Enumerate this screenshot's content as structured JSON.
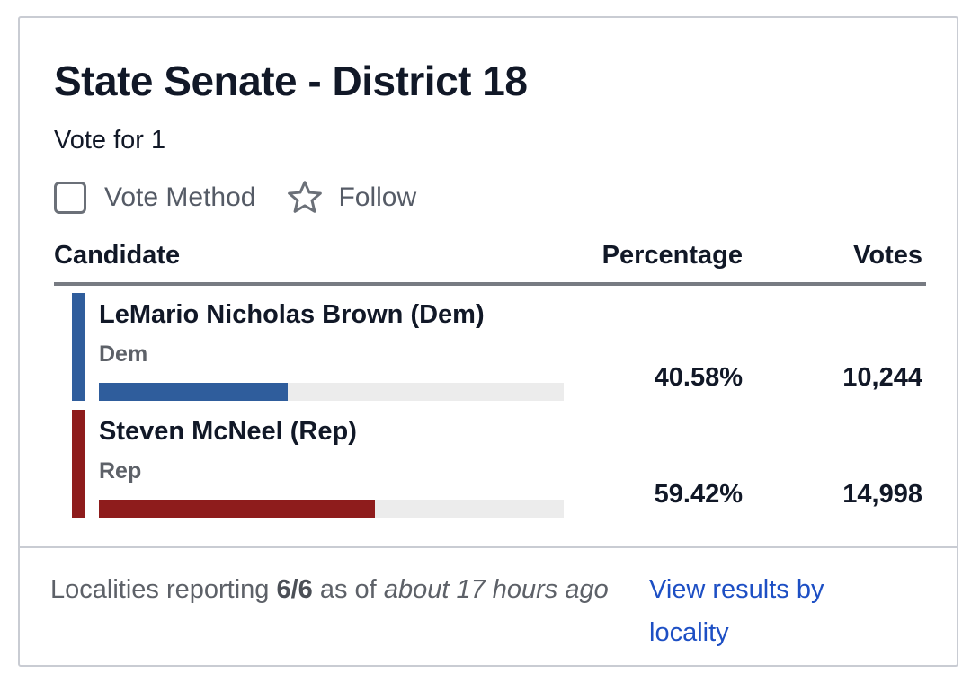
{
  "race": {
    "title": "State Senate - District 18",
    "vote_for": "Vote for 1"
  },
  "actions": {
    "vote_method_label": "Vote Method",
    "follow_label": "Follow"
  },
  "table": {
    "headers": {
      "candidate": "Candidate",
      "percentage": "Percentage",
      "votes": "Votes"
    },
    "rows": [
      {
        "name": "LeMario Nicholas Brown (Dem)",
        "party": "Dem",
        "percentage": "40.58%",
        "votes": "10,244",
        "share": 0.4058,
        "color": "#2f5d9c"
      },
      {
        "name": "Steven McNeel (Rep)",
        "party": "Rep",
        "percentage": "59.42%",
        "votes": "14,998",
        "share": 0.5942,
        "color": "#8e1c1c"
      }
    ]
  },
  "footer": {
    "reporting_prefix": "Localities reporting ",
    "reporting_count": "6/6",
    "reporting_mid": " as of ",
    "reporting_time": "about 17 hours ago",
    "link_label": "View results by locality"
  },
  "icons": {
    "vote_method": "checkbox-icon",
    "follow": "star-icon"
  }
}
